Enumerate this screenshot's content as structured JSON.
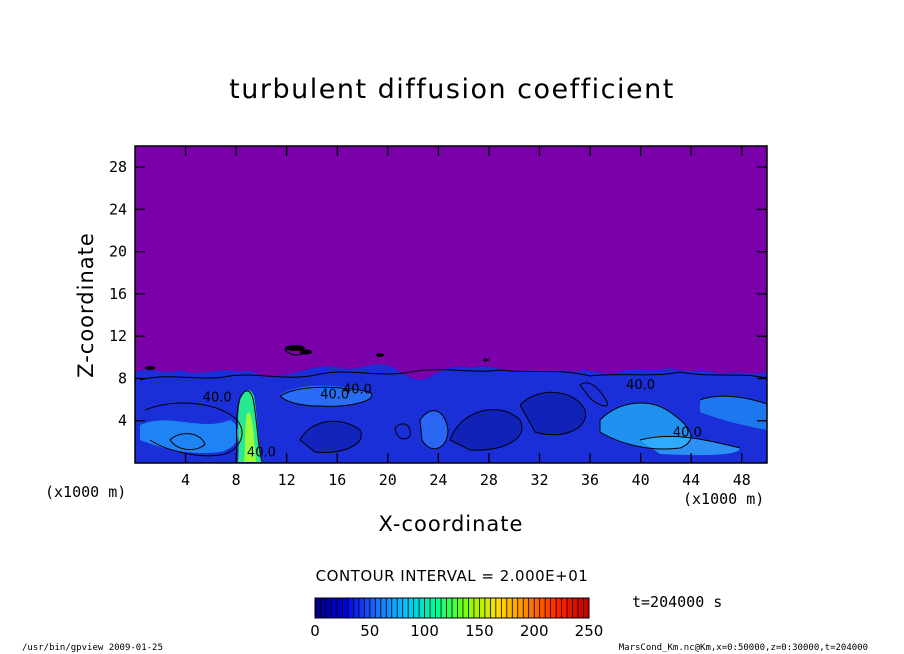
{
  "chart_data": {
    "type": "heatmap",
    "title": "turbulent diffusion coefficient",
    "xlabel": "X-coordinate",
    "ylabel": "Z-coordinate",
    "x_unit": "(x1000 m)",
    "y_unit": "(x1000 m)",
    "xlim": [
      0,
      50
    ],
    "ylim": [
      0,
      30
    ],
    "x_ticks": [
      "4",
      "8",
      "12",
      "16",
      "20",
      "24",
      "28",
      "32",
      "36",
      "40",
      "44",
      "48"
    ],
    "y_ticks": [
      "4",
      "8",
      "12",
      "16",
      "20",
      "24",
      "28"
    ],
    "x_tick_values": [
      4,
      8,
      12,
      16,
      20,
      24,
      28,
      32,
      36,
      40,
      44,
      48
    ],
    "y_tick_values": [
      4,
      8,
      12,
      16,
      20,
      24,
      28
    ],
    "contour_interval": "CONTOUR INTERVAL = 2.000E+01",
    "contour_labels": [
      {
        "text": "40.0",
        "x": 6.5,
        "z": 5.8
      },
      {
        "text": "40.0",
        "x": 15.8,
        "z": 6.1
      },
      {
        "text": "40.0",
        "x": 17.6,
        "z": 6.6
      },
      {
        "text": "40.0",
        "x": 10.0,
        "z": 0.6
      },
      {
        "text": "40.0",
        "x": 43.7,
        "z": 2.5
      },
      {
        "text": "40.0",
        "x": 40.0,
        "z": 7.0
      }
    ],
    "colorbar": {
      "min": 0,
      "max": 250,
      "tick_labels": [
        "0",
        "50",
        "100",
        "150",
        "200",
        "250"
      ],
      "tick_values": [
        0,
        50,
        100,
        150,
        200,
        250
      ],
      "colors": [
        "#000080",
        "#0000e0",
        "#1e6bff",
        "#00c8ff",
        "#00ff90",
        "#80ff00",
        "#ffe000",
        "#ff8000",
        "#ff2000",
        "#c00000"
      ]
    },
    "background_color": "#7a00aa",
    "time_label": "t=204000 s"
  },
  "footer": {
    "left": "/usr/bin/gpview  2009-01-25",
    "right": "MarsCond_Km.nc@Km,x=0:50000,z=0:30000,t=204000"
  }
}
